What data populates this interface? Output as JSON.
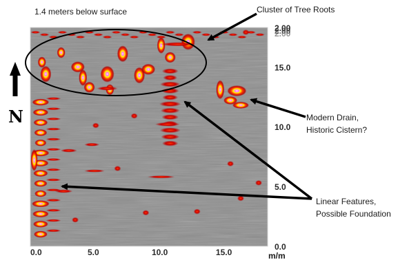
{
  "chart_data": {
    "type": "heatmap",
    "title": "1.4 meters below surface",
    "xlabel": "m/m",
    "ylabel": "",
    "x_ticks": [
      "0.0",
      "5.0",
      "10.0",
      "15.0"
    ],
    "y_ticks": [
      "0.0",
      "5.0",
      "10.0",
      "15.0"
    ],
    "y_top_ticks_overlap": [
      "2.00",
      "2.00",
      "2.00"
    ],
    "xlim": [
      0,
      18.5
    ],
    "ylim": [
      0,
      18.3
    ],
    "north_letter": "N",
    "annotations": [
      {
        "text": "Cluster of Tree Roots",
        "target_x": 13.2,
        "target_y": 16.5
      },
      {
        "lines": [
          "Modern Drain,",
          "Historic Cistern?"
        ],
        "target_x": 16.8,
        "target_y": 11.5
      },
      {
        "lines": [
          "Linear Features,",
          "Possible Foundation"
        ],
        "targets": [
          {
            "x": 2.3,
            "y": 4.6
          },
          {
            "x": 11.9,
            "y": 11.7
          }
        ]
      }
    ],
    "anomalies": [
      {
        "name": "tree-root-cluster",
        "x": [
          0.5,
          13.5
        ],
        "y": [
          12.5,
          18.2
        ],
        "strength": "high"
      },
      {
        "name": "drain-cistern",
        "x": [
          15.2,
          17.3
        ],
        "y": [
          11.2,
          13.8
        ],
        "strength": "high"
      },
      {
        "name": "linear-west-edge",
        "x": [
          0.0,
          1.8
        ],
        "y": [
          0.5,
          12.0
        ],
        "strength": "high"
      },
      {
        "name": "linear-center",
        "x": [
          10.0,
          12.5
        ],
        "y": [
          8.5,
          15.0
        ],
        "strength": "medium"
      }
    ],
    "colors": {
      "background": "#8e8e8e",
      "low": "#b30000",
      "mid": "#ff3300",
      "high": "#ffff00",
      "peak": "#ff66ff",
      "core": "#ffffff"
    }
  }
}
